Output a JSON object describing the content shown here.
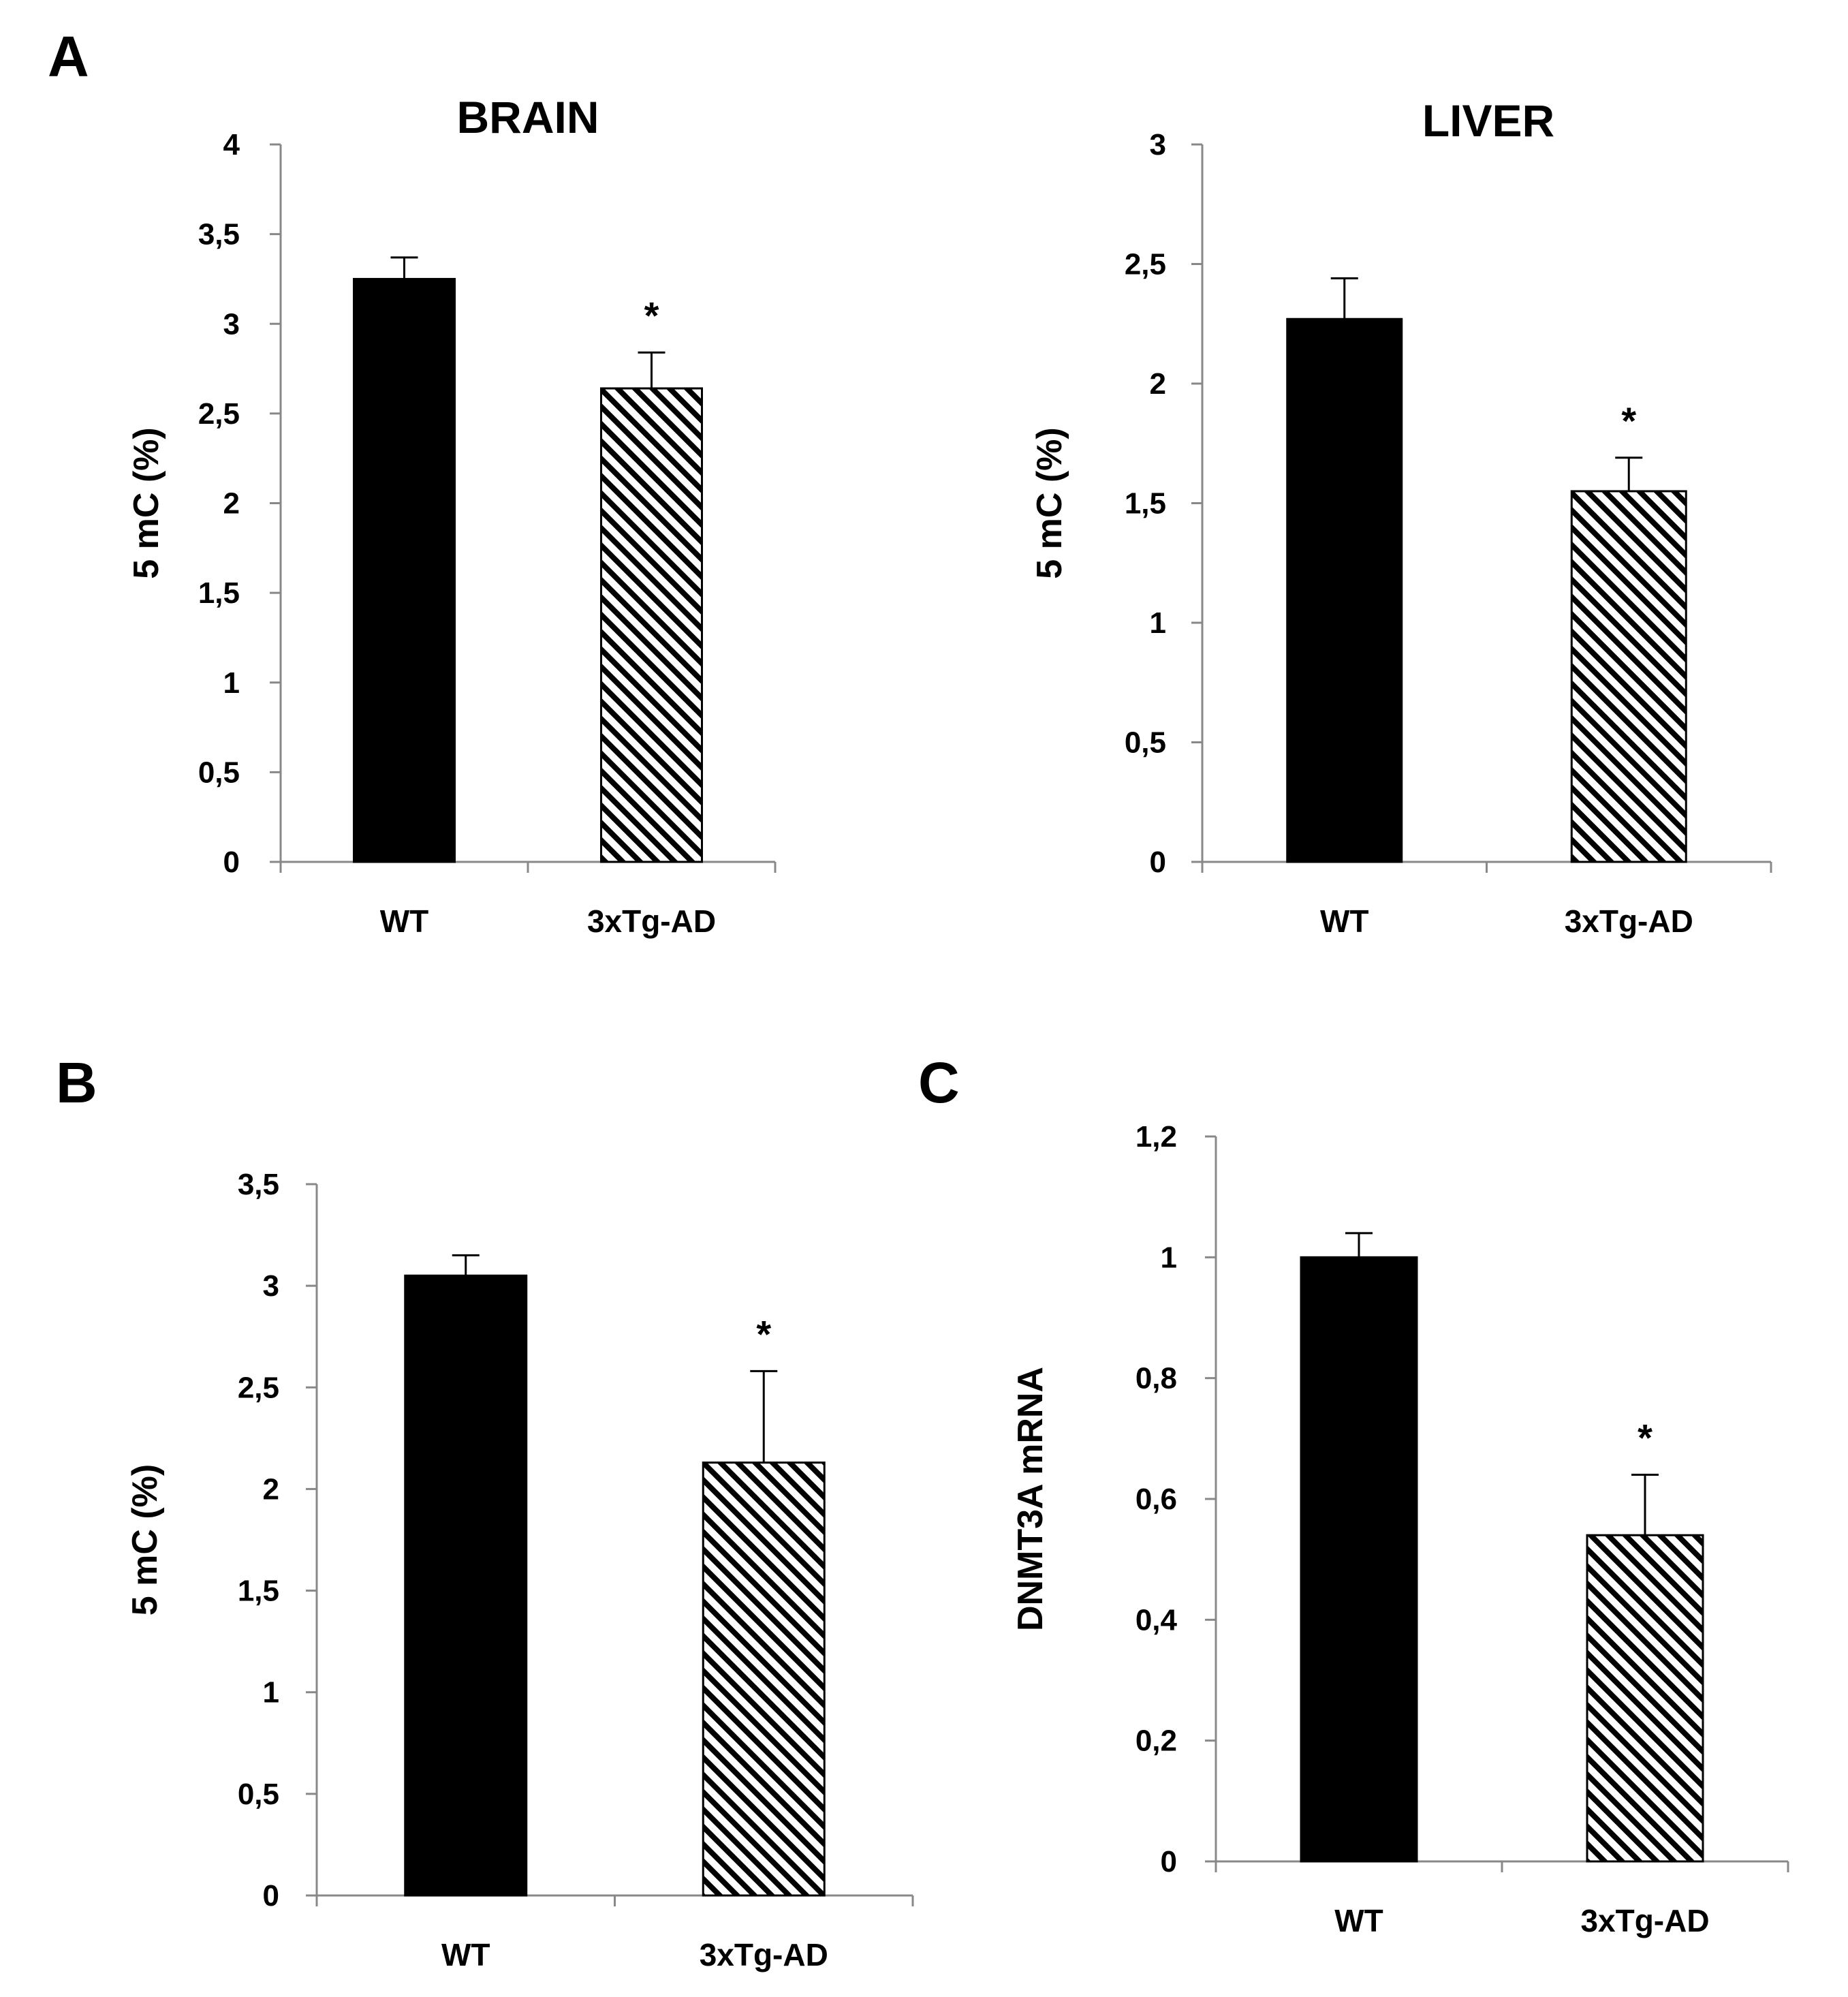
{
  "panel_labels": [
    "A",
    "B",
    "C"
  ],
  "colors": {
    "wt_bar": "#000000",
    "tg_bar_pattern": "diagonal-hatch",
    "axis": "#888888",
    "text": "#000000"
  },
  "chart_data": [
    {
      "panel": "A",
      "type": "bar",
      "title": "BRAIN",
      "xlabel": "",
      "ylabel": "5 mC (%)",
      "categories": [
        "WT",
        "3xTg-AD"
      ],
      "values": [
        3.25,
        2.64
      ],
      "errors": [
        0.12,
        0.2
      ],
      "significance": [
        "",
        "*"
      ],
      "ylim": [
        0,
        4
      ],
      "yticks": [
        0,
        0.5,
        1,
        1.5,
        2,
        2.5,
        3,
        3.5,
        4
      ],
      "ytick_labels": [
        "0",
        "0,5",
        "1",
        "1,5",
        "2",
        "2,5",
        "3",
        "3,5",
        "4"
      ]
    },
    {
      "panel": "A",
      "type": "bar",
      "title": "LIVER",
      "xlabel": "",
      "ylabel": "5 mC (%)",
      "categories": [
        "WT",
        "3xTg-AD"
      ],
      "values": [
        2.27,
        1.55
      ],
      "errors": [
        0.17,
        0.14
      ],
      "significance": [
        "",
        "*"
      ],
      "ylim": [
        0,
        3
      ],
      "yticks": [
        0,
        0.5,
        1,
        1.5,
        2,
        2.5,
        3
      ],
      "ytick_labels": [
        "0",
        "0,5",
        "1",
        "1,5",
        "2",
        "2,5",
        "3"
      ]
    },
    {
      "panel": "B",
      "type": "bar",
      "title": "",
      "xlabel": "",
      "ylabel": "5 mC (%)",
      "categories": [
        "WT",
        "3xTg-AD"
      ],
      "values": [
        3.05,
        2.13
      ],
      "errors": [
        0.1,
        0.45
      ],
      "significance": [
        "",
        "*"
      ],
      "ylim": [
        0,
        3.5
      ],
      "yticks": [
        0,
        0.5,
        1,
        1.5,
        2,
        2.5,
        3,
        3.5
      ],
      "ytick_labels": [
        "0",
        "0,5",
        "1",
        "1,5",
        "2",
        "2,5",
        "3",
        "3,5"
      ]
    },
    {
      "panel": "C",
      "type": "bar",
      "title": "",
      "xlabel": "",
      "ylabel": "DNMT3A mRNA",
      "categories": [
        "WT",
        "3xTg-AD"
      ],
      "values": [
        1.0,
        0.54
      ],
      "errors": [
        0.04,
        0.1
      ],
      "significance": [
        "",
        "*"
      ],
      "ylim": [
        0,
        1.2
      ],
      "yticks": [
        0,
        0.2,
        0.4,
        0.6,
        0.8,
        1,
        1.2
      ],
      "ytick_labels": [
        "0",
        "0,2",
        "0,4",
        "0,6",
        "0,8",
        "1",
        "1,2"
      ]
    }
  ]
}
